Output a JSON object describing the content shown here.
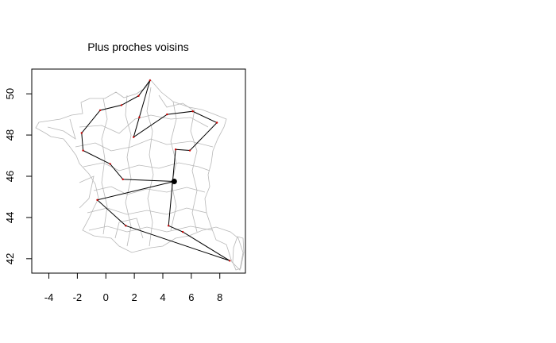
{
  "chart_data": {
    "type": "line",
    "title": "Plus proches voisins",
    "xlabel": "",
    "ylabel": "",
    "xlim": [
      -5.2,
      9.8
    ],
    "ylim": [
      41.3,
      51.2
    ],
    "x_ticks": [
      -4,
      -2,
      0,
      2,
      4,
      6,
      8
    ],
    "y_ticks": [
      42,
      44,
      46,
      48,
      50
    ],
    "x_tick_labels": [
      "-4",
      "-2",
      "0",
      "2",
      "4",
      "6",
      "8"
    ],
    "y_tick_labels": [
      "42",
      "44",
      "46",
      "48",
      "50"
    ],
    "grid": false,
    "background_map": "France départements (gray outlines)",
    "start_point": {
      "x": 4.8,
      "y": 45.75
    },
    "series": [
      {
        "values_xy": [
          [
            4.8,
            45.75
          ],
          [
            -0.6,
            44.85
          ],
          [
            1.4,
            43.6
          ],
          [
            8.7,
            41.9
          ],
          [
            5.4,
            43.3
          ],
          [
            4.4,
            43.6
          ],
          [
            4.9,
            47.3
          ],
          [
            5.9,
            47.25
          ],
          [
            7.8,
            48.6
          ],
          [
            6.1,
            49.15
          ],
          [
            4.3,
            49.0
          ],
          [
            1.95,
            47.9
          ],
          [
            2.35,
            48.86
          ],
          [
            3.1,
            50.65
          ],
          [
            2.3,
            49.9
          ],
          [
            1.1,
            49.45
          ],
          [
            -0.4,
            49.2
          ],
          [
            -1.7,
            48.1
          ],
          [
            -1.6,
            47.25
          ],
          [
            0.3,
            46.6
          ],
          [
            1.2,
            45.85
          ],
          [
            4.8,
            45.75
          ]
        ]
      }
    ],
    "colors": {
      "route": "#000000",
      "city_marker": "#cc0000",
      "map_outline": "#b8b8b8",
      "start_marker": "#000000"
    }
  }
}
